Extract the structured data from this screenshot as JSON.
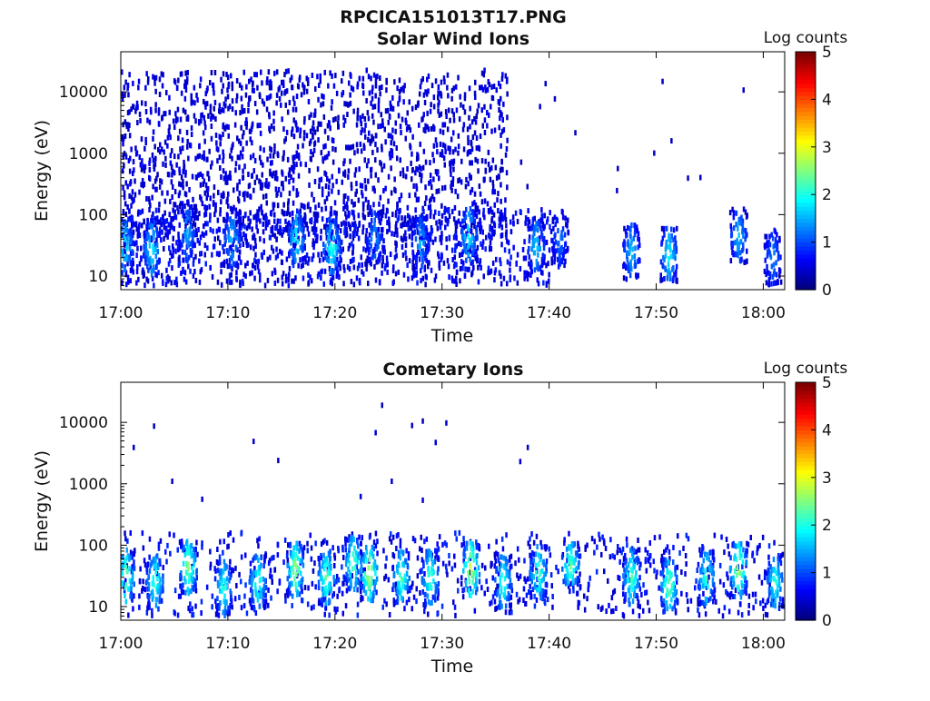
{
  "figure_title": "RPCICA151013T17.PNG",
  "chart_data": [
    {
      "type": "heatmap",
      "title": "Solar Wind Ions",
      "xlabel": "Time",
      "ylabel": "Energy (eV)",
      "yscale": "log",
      "x_ticks": [
        "17:00",
        "17:10",
        "17:20",
        "17:30",
        "17:40",
        "17:50",
        "18:00"
      ],
      "x_range_minutes": [
        0,
        62
      ],
      "y_ticks": [
        {
          "value": 10,
          "label": "10"
        },
        {
          "value": 100,
          "label": "100"
        },
        {
          "value": 1000,
          "label": "1000"
        },
        {
          "value": 10000,
          "label": "10000"
        }
      ],
      "ylim": [
        6,
        45000
      ],
      "colorbar": {
        "label": "Log counts",
        "min": 0,
        "max": 5,
        "ticks": [
          "0",
          "1",
          "2",
          "3",
          "4",
          "5"
        ]
      },
      "scatter_until_minute": 36,
      "bursts": [
        {
          "t": 0.3,
          "e": 30,
          "v": 1.9
        },
        {
          "t": 2.8,
          "e": 28,
          "v": 2.0
        },
        {
          "t": 6.1,
          "e": 50,
          "v": 1.6
        },
        {
          "t": 10.3,
          "e": 40,
          "v": 1.7
        },
        {
          "t": 16.3,
          "e": 40,
          "v": 2.0
        },
        {
          "t": 19.6,
          "e": 30,
          "v": 2.2
        },
        {
          "t": 23.6,
          "e": 40,
          "v": 1.5
        },
        {
          "t": 27.9,
          "e": 35,
          "v": 1.6
        },
        {
          "t": 32.4,
          "e": 45,
          "v": 2.0
        },
        {
          "t": 38.7,
          "e": 30,
          "v": 1.8
        },
        {
          "t": 40.9,
          "e": 40,
          "v": 1.3
        },
        {
          "t": 47.6,
          "e": 25,
          "v": 1.7
        },
        {
          "t": 51.1,
          "e": 22,
          "v": 2.0
        },
        {
          "t": 57.6,
          "e": 45,
          "v": 1.7
        },
        {
          "t": 60.8,
          "e": 20,
          "v": 1.4
        }
      ]
    },
    {
      "type": "heatmap",
      "title": "Cometary Ions",
      "xlabel": "Time",
      "ylabel": "Energy (eV)",
      "yscale": "log",
      "x_ticks": [
        "17:00",
        "17:10",
        "17:20",
        "17:30",
        "17:40",
        "17:50",
        "18:00"
      ],
      "x_range_minutes": [
        0,
        62
      ],
      "y_ticks": [
        {
          "value": 10,
          "label": "10"
        },
        {
          "value": 100,
          "label": "100"
        },
        {
          "value": 1000,
          "label": "1000"
        },
        {
          "value": 10000,
          "label": "10000"
        }
      ],
      "ylim": [
        6,
        45000
      ],
      "colorbar": {
        "label": "Log counts",
        "min": 0,
        "max": 5,
        "ticks": [
          "0",
          "1",
          "2",
          "3",
          "4",
          "5"
        ]
      },
      "scatter_until_minute": 0,
      "bursts": [
        {
          "t": 0.4,
          "e": 30,
          "v": 2.6
        },
        {
          "t": 3.1,
          "e": 25,
          "v": 2.3
        },
        {
          "t": 6.2,
          "e": 45,
          "v": 2.7
        },
        {
          "t": 9.5,
          "e": 20,
          "v": 2.2
        },
        {
          "t": 12.7,
          "e": 25,
          "v": 2.3
        },
        {
          "t": 16.2,
          "e": 40,
          "v": 2.8
        },
        {
          "t": 19.1,
          "e": 30,
          "v": 2.5
        },
        {
          "t": 21.6,
          "e": 50,
          "v": 2.5
        },
        {
          "t": 23.1,
          "e": 35,
          "v": 3.0
        },
        {
          "t": 26.1,
          "e": 30,
          "v": 2.4
        },
        {
          "t": 28.8,
          "e": 30,
          "v": 2.4
        },
        {
          "t": 32.6,
          "e": 40,
          "v": 3.1
        },
        {
          "t": 35.6,
          "e": 25,
          "v": 2.3
        },
        {
          "t": 38.9,
          "e": 35,
          "v": 2.4
        },
        {
          "t": 41.9,
          "e": 45,
          "v": 2.5
        },
        {
          "t": 47.6,
          "e": 30,
          "v": 2.4
        },
        {
          "t": 51.1,
          "e": 22,
          "v": 2.6
        },
        {
          "t": 54.6,
          "e": 30,
          "v": 2.3
        },
        {
          "t": 57.6,
          "e": 40,
          "v": 2.9
        },
        {
          "t": 61.0,
          "e": 25,
          "v": 2.2
        }
      ],
      "isolated_points": [
        {
          "t": 1.1,
          "e": 3900,
          "v": 0.4
        },
        {
          "t": 3.0,
          "e": 8700,
          "v": 0.3
        },
        {
          "t": 4.7,
          "e": 1100,
          "v": 0.4
        },
        {
          "t": 7.5,
          "e": 560,
          "v": 0.4
        },
        {
          "t": 12.3,
          "e": 4900,
          "v": 0.4
        },
        {
          "t": 14.6,
          "e": 2400,
          "v": 0.4
        },
        {
          "t": 23.7,
          "e": 6800,
          "v": 0.4
        },
        {
          "t": 24.3,
          "e": 19000,
          "v": 0.3
        },
        {
          "t": 25.2,
          "e": 1100,
          "v": 0.4
        },
        {
          "t": 27.1,
          "e": 8900,
          "v": 0.4
        },
        {
          "t": 28.1,
          "e": 10500,
          "v": 0.3
        },
        {
          "t": 29.3,
          "e": 4700,
          "v": 0.4
        },
        {
          "t": 30.3,
          "e": 9800,
          "v": 0.4
        },
        {
          "t": 37.2,
          "e": 2300,
          "v": 0.4
        },
        {
          "t": 37.9,
          "e": 3900,
          "v": 0.4
        },
        {
          "t": 28.1,
          "e": 540,
          "v": 0.4
        },
        {
          "t": 22.3,
          "e": 620,
          "v": 0.4
        }
      ]
    }
  ]
}
